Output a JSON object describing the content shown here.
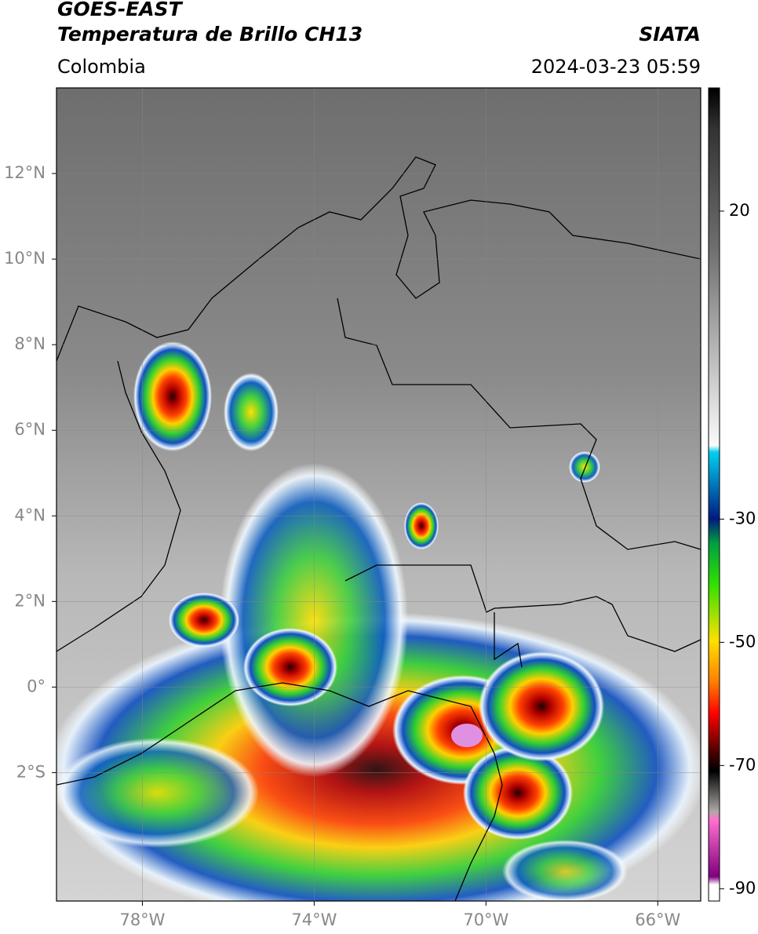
{
  "header": {
    "title": "GOES-EAST",
    "subtitle": "Temperatura de Brillo CH13",
    "source": "SIATA",
    "region": "Colombia",
    "datetime": "2024-03-23 05:59"
  },
  "map": {
    "xlim": [
      -80,
      -65
    ],
    "ylim": [
      -5,
      14
    ],
    "xticks": [
      {
        "value": -78,
        "label": "78°W"
      },
      {
        "value": -74,
        "label": "74°W"
      },
      {
        "value": -70,
        "label": "70°W"
      },
      {
        "value": -66,
        "label": "66°W"
      }
    ],
    "yticks": [
      {
        "value": 12,
        "label": "12°N"
      },
      {
        "value": 10,
        "label": "10°N"
      },
      {
        "value": 8,
        "label": "8°N"
      },
      {
        "value": 6,
        "label": "6°N"
      },
      {
        "value": 4,
        "label": "4°N"
      },
      {
        "value": 2,
        "label": "2°N"
      },
      {
        "value": 0,
        "label": "0°"
      },
      {
        "value": -2,
        "label": "2°S"
      }
    ],
    "grid": true
  },
  "colorbar": {
    "lim": [
      -92,
      40
    ],
    "ticks": [
      20,
      -30,
      -50,
      -70,
      -90
    ]
  }
}
